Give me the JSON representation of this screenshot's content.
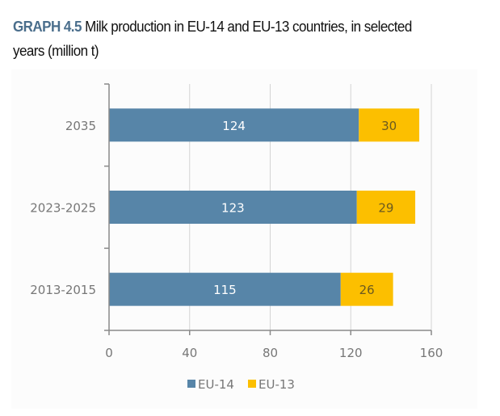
{
  "header": {
    "graph_number": "GRAPH 4.5",
    "title": "Milk production in EU-14 and EU-13 countries, in selected years (million t)"
  },
  "colors": {
    "EU-14": "#5785a8",
    "EU-13": "#fcbf00"
  },
  "chart_data": {
    "type": "bar",
    "orientation": "horizontal",
    "stacked": true,
    "categories": [
      "2035",
      "2023-2025",
      "2013-2015"
    ],
    "series": [
      {
        "name": "EU-14",
        "values": [
          124,
          123,
          115
        ]
      },
      {
        "name": "EU-13",
        "values": [
          30,
          29,
          26
        ]
      }
    ],
    "xlim": [
      0,
      160
    ],
    "xticks": [
      "0",
      "40",
      "80",
      "120",
      "160"
    ],
    "grid": "vertical",
    "legend": "bottom"
  }
}
